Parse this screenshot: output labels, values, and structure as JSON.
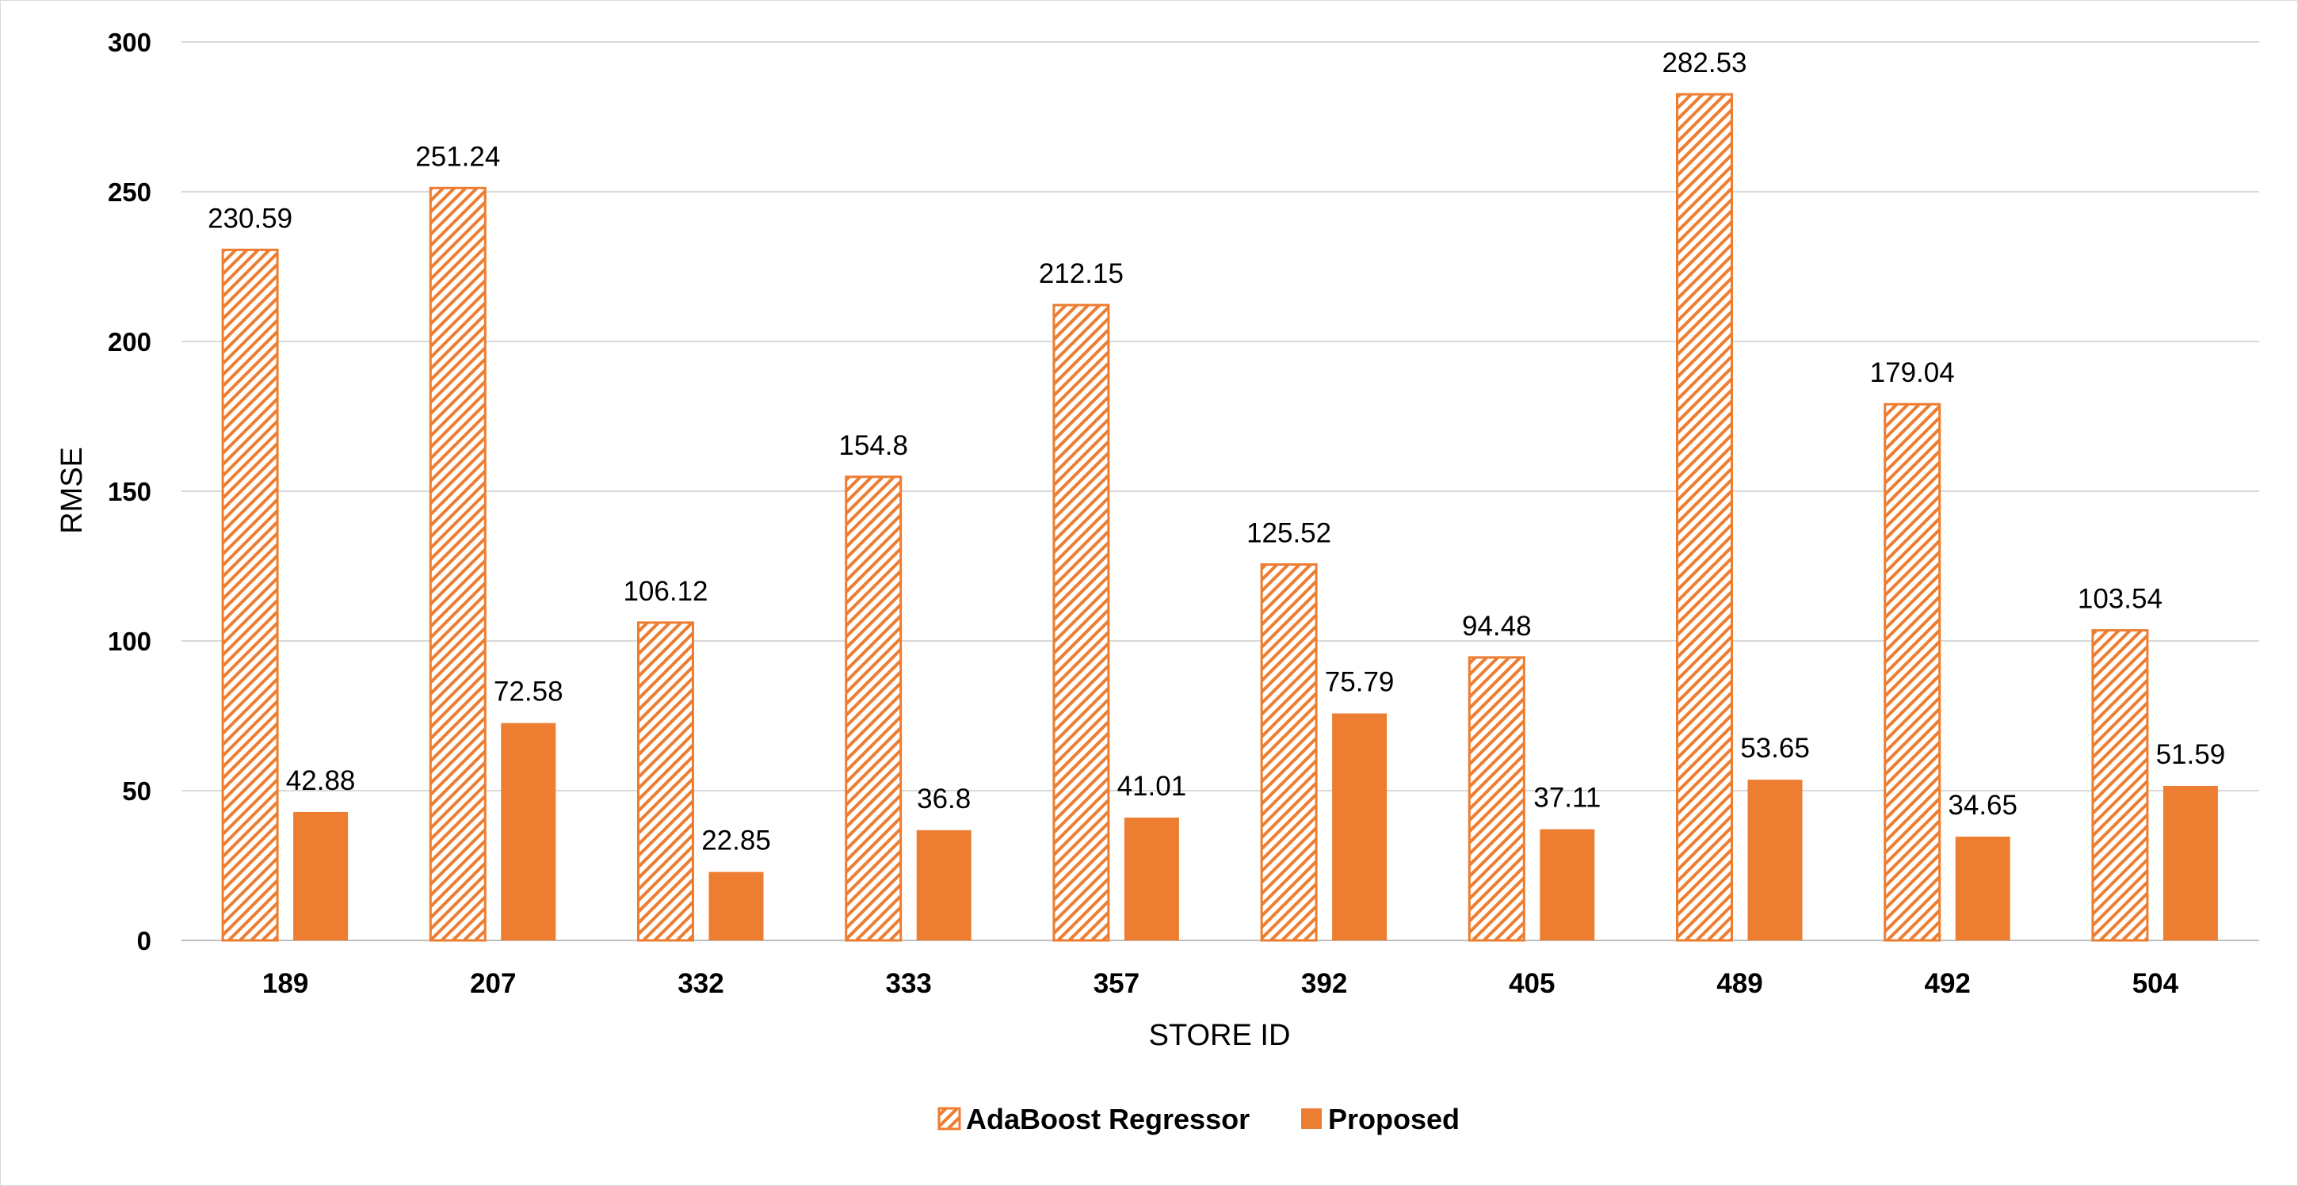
{
  "chart_data": {
    "type": "bar",
    "xlabel": "STORE ID",
    "ylabel": "RMSE",
    "ylim": [
      0,
      300
    ],
    "yticks": [
      0,
      50,
      100,
      150,
      200,
      250,
      300
    ],
    "grid": true,
    "legend_position": "bottom",
    "categories": [
      "189",
      "207",
      "332",
      "333",
      "357",
      "392",
      "405",
      "489",
      "492",
      "504"
    ],
    "series": [
      {
        "name": "AdaBoost Regressor",
        "values": [
          230.59,
          251.24,
          106.12,
          154.8,
          212.15,
          125.52,
          94.48,
          282.53,
          179.04,
          103.54
        ],
        "labels": [
          "230.59",
          "251.24",
          "106.12",
          "154.8",
          "212.15",
          "125.52",
          "94.48",
          "282.53",
          "179.04",
          "103.54"
        ],
        "color": "#ED7D31",
        "fill": "hatched"
      },
      {
        "name": "Proposed",
        "values": [
          42.88,
          72.58,
          22.85,
          36.8,
          41.01,
          75.79,
          37.11,
          53.65,
          34.65,
          51.59
        ],
        "labels": [
          "42.88",
          "72.58",
          "22.85",
          "36.8",
          "41.01",
          "75.79",
          "37.11",
          "53.65",
          "34.65",
          "51.59"
        ],
        "color": "#ED7D31",
        "fill": "solid"
      }
    ]
  }
}
